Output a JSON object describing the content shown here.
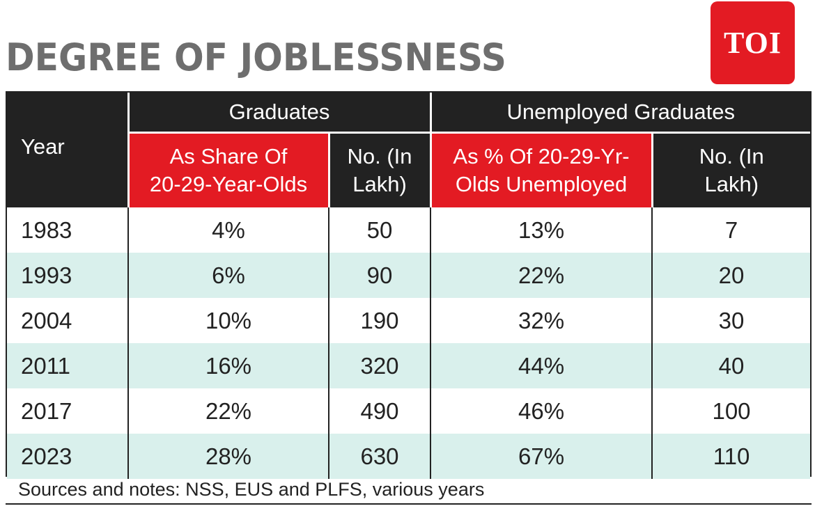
{
  "title": "DEGREE OF JOBLESSNESS",
  "logo": "TOI",
  "footer": "Sources and notes: NSS, EUS and PLFS, various years",
  "colors": {
    "accent": "#e31b23",
    "header_bg": "#222222",
    "row_alt": "#d9f0ec"
  },
  "chart_data": {
    "type": "table",
    "title": "DEGREE OF JOBLESSNESS",
    "groups": [
      "Graduates",
      "Unemployed Graduates"
    ],
    "columns": [
      "Year",
      "As Share Of 20-29-Year-Olds",
      "No. (In Lakh)",
      "As % Of 20-29-Yr-Olds Unemployed",
      "No. (In Lakh)"
    ],
    "rows": [
      [
        "1983",
        "4%",
        "50",
        "13%",
        "7"
      ],
      [
        "1993",
        "6%",
        "90",
        "22%",
        "20"
      ],
      [
        "2004",
        "10%",
        "190",
        "32%",
        "30"
      ],
      [
        "2011",
        "16%",
        "320",
        "44%",
        "40"
      ],
      [
        "2017",
        "22%",
        "490",
        "46%",
        "100"
      ],
      [
        "2023",
        "28%",
        "630",
        "67%",
        "110"
      ]
    ]
  },
  "headers": {
    "year": "Year",
    "group1": "Graduates",
    "group2": "Unemployed Graduates",
    "c1_line1": "As Share Of",
    "c1_line2": "20-29-Year-Olds",
    "c2_line1": "No. (In",
    "c2_line2": "Lakh)",
    "c3_line1": "As % Of 20-29-Yr-",
    "c3_line2": "Olds Unemployed",
    "c4_line1": "No. (In",
    "c4_line2": "Lakh)"
  }
}
